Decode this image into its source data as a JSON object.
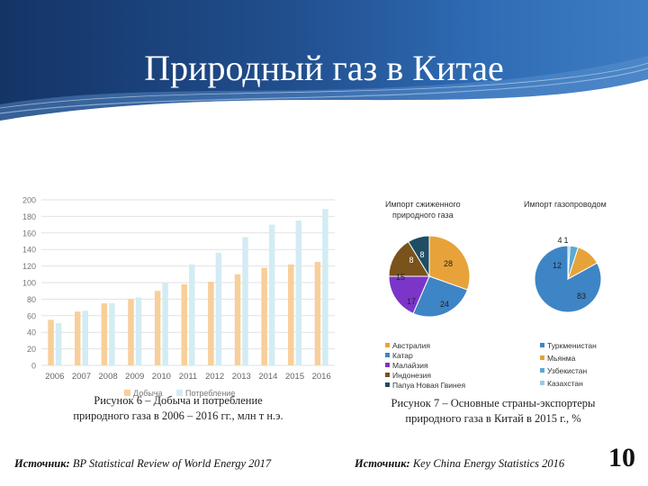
{
  "slide": {
    "title": "Природный газ в Китае",
    "number": "10"
  },
  "left": {
    "caption_line1": "Рисунок 6 – Добыча и потребление",
    "caption_line2": "природного газа в 2006 – 2016 гг., млн т н.э.",
    "source_label": "Источник:",
    "source_text": " BP Statistical Review of World Energy 2017"
  },
  "right": {
    "caption_line1": "Рисунок 7 – Основные страны-экспортеры",
    "caption_line2": "природного газа в Китай в 2015 г., %",
    "source_label": "Источник:",
    "source_text": " Key China Energy Statistics 2016"
  },
  "colors": {
    "header_dark": "#173c74",
    "header_light": "#2f6cb5",
    "production": "#f8cf9a",
    "consumption": "#d3ecf3",
    "australia": "#e7a33a",
    "qatar": "#3e85c6",
    "malaysia": "#7b36c9",
    "indonesia": "#7a521c",
    "png": "#1f4d64",
    "turkmenistan": "#3e85c6",
    "myanmar": "#e7a33a",
    "uzbekistan": "#5aa9d6",
    "kazakhstan": "#98cce6"
  },
  "chart_data": [
    {
      "type": "bar",
      "categories": [
        "2006",
        "2007",
        "2008",
        "2009",
        "2010",
        "2011",
        "2012",
        "2013",
        "2014",
        "2015",
        "2016"
      ],
      "series": [
        {
          "name": "Добыча",
          "values": [
            55,
            65,
            75,
            80,
            90,
            98,
            101,
            110,
            118,
            122,
            125
          ]
        },
        {
          "name": "Потребление",
          "values": [
            51,
            66,
            75,
            82,
            100,
            122,
            136,
            155,
            170,
            175,
            189
          ]
        }
      ],
      "ylim": [
        0,
        200
      ],
      "yticks": [
        "0",
        "20",
        "40",
        "60",
        "80",
        "100",
        "120",
        "140",
        "160",
        "180",
        "200"
      ],
      "grid": true,
      "legend": "bottom"
    },
    {
      "type": "pie",
      "title": "Импорт сжиженного природного газа",
      "labels": [
        "Австралия",
        "Катар",
        "Малайзия",
        "Индонезия",
        "Папуа Новая Гвинея"
      ],
      "values": [
        28,
        24,
        17,
        15,
        8
      ],
      "extra_labels": [
        "8"
      ],
      "legend": "bottom"
    },
    {
      "type": "pie",
      "title": "Импорт газопроводом",
      "labels": [
        "Туркменистан",
        "Мьянма",
        "Узбекистан",
        "Казахстан"
      ],
      "values": [
        83,
        12,
        4,
        1
      ],
      "legend": "bottom"
    }
  ]
}
